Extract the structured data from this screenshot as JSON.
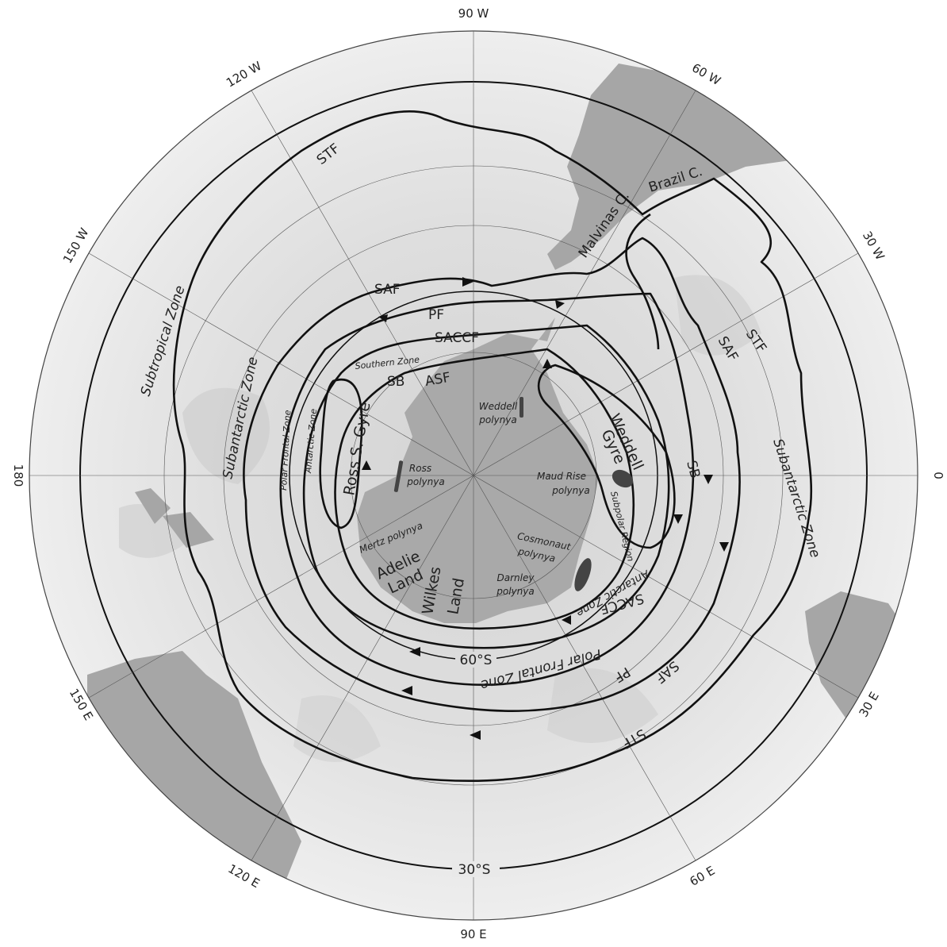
{
  "colors": {
    "ocean_light": "#ececec",
    "ocean_dark": "#c9c9c9",
    "land": "#a7a7a7",
    "antarctica": "#a9a9a9",
    "front_line": "#111111",
    "polynya": "#555555"
  },
  "longitude_labels": {
    "top": "90 W",
    "bottom": "90 E",
    "left": "180",
    "right": "0",
    "w120": "120 W",
    "w60": "60 W",
    "w150": "150 W",
    "w30": "30 W",
    "e150": "150 E",
    "e30": "30 E",
    "e120": "120 E",
    "e60": "60 E"
  },
  "latitude_labels": {
    "lat60": "60°S",
    "lat30": "30°S"
  },
  "fronts": {
    "stf_top": "STF",
    "stf_right": "STF",
    "stf_bottom": "STF",
    "saf_top": "SAF",
    "saf_right": "SAF",
    "saf_bottom": "SAF",
    "pf_top": "PF",
    "pf_bottom": "PF",
    "saccf_top": "SACCF",
    "saccf_bottom": "SACCF",
    "sb_top": "SB",
    "sb_right": "SB",
    "asf": "ASF"
  },
  "currents": {
    "brazil": "Brazil C.",
    "malvinas": "Malvinas C."
  },
  "zones": {
    "subtropical": "Subtropical Zone",
    "subantarctic_left": "Subantarctic Zone",
    "subantarctic_right": "Subantarctic Zone",
    "polar_frontal_left": "Polar Frontal Zone",
    "polar_frontal_bottom": "Polar Frontal Zone",
    "antarctic_left": "Antarctic Zone",
    "antarctic_bottom": "Antarctic Zone",
    "southern": "Southern Zone",
    "subpolar": "Subpolar Region"
  },
  "gyres": {
    "ross": "Ross S. Gyre",
    "weddell_1": "Weddell",
    "weddell_2": "Gyre"
  },
  "polynyas": {
    "weddell_1": "Weddell",
    "weddell_2": "polynya",
    "ross_1": "Ross",
    "ross_2": "polynya",
    "maud_1": "Maud Rise",
    "maud_2": "polynya",
    "mertz": "Mertz polynya",
    "cosmo_1": "Cosmonaut",
    "cosmo_2": "polynya",
    "darnley_1": "Darnley",
    "darnley_2": "polynya"
  },
  "lands": {
    "adelie_1": "Adelie",
    "adelie_2": "Land",
    "wilkes_1": "Wilkes",
    "wilkes_2": "Land"
  }
}
